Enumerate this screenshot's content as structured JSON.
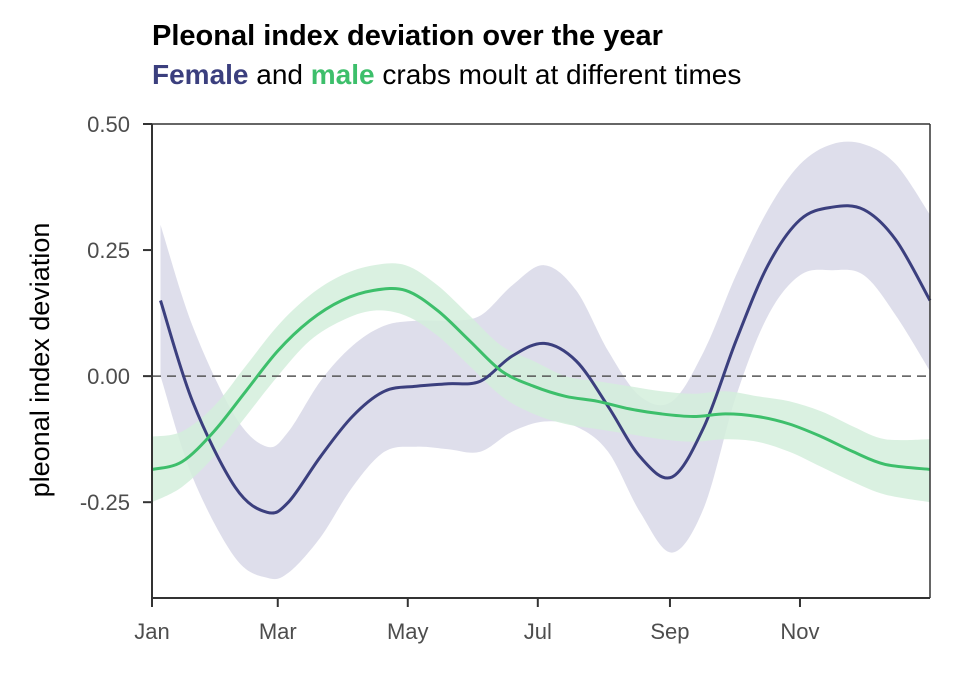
{
  "chart_data": {
    "type": "line",
    "title": "Pleonal index deviation over the year",
    "subtitle": {
      "female_word": "Female",
      "and_word": "and",
      "male_word": "male",
      "rest": "crabs moult at different times"
    },
    "xlabel": "",
    "ylabel": "pleonal index deviation",
    "xlim": [
      1,
      366
    ],
    "ylim": [
      -0.44,
      0.5
    ],
    "x_ticks": [
      {
        "label": "Jan",
        "x": 1
      },
      {
        "label": "Mar",
        "x": 60
      },
      {
        "label": "May",
        "x": 121
      },
      {
        "label": "Jul",
        "x": 182
      },
      {
        "label": "Sep",
        "x": 244
      },
      {
        "label": "Nov",
        "x": 305
      }
    ],
    "y_ticks": [
      {
        "label": "0.50",
        "y": 0.5
      },
      {
        "label": "0.25",
        "y": 0.25
      },
      {
        "label": "0.00",
        "y": 0.0
      },
      {
        "label": "-0.25",
        "y": -0.25
      }
    ],
    "reference_line": {
      "y": 0.0,
      "style": "dashed"
    },
    "grid": false,
    "series": [
      {
        "name": "Female",
        "color": "#3b3f7e",
        "band_color": "#d8d8e8",
        "x": [
          5,
          20,
          40,
          55,
          65,
          80,
          95,
          110,
          125,
          140,
          155,
          170,
          185,
          200,
          215,
          230,
          245,
          260,
          275,
          290,
          305,
          320,
          335,
          350,
          366
        ],
        "y": [
          0.15,
          -0.05,
          -0.22,
          -0.27,
          -0.25,
          -0.16,
          -0.08,
          -0.03,
          -0.02,
          -0.015,
          -0.01,
          0.04,
          0.065,
          0.03,
          -0.06,
          -0.16,
          -0.2,
          -0.1,
          0.07,
          0.22,
          0.31,
          0.335,
          0.33,
          0.27,
          0.15
        ],
        "lower": [
          0.0,
          -0.2,
          -0.36,
          -0.4,
          -0.39,
          -0.32,
          -0.22,
          -0.15,
          -0.14,
          -0.145,
          -0.15,
          -0.11,
          -0.09,
          -0.1,
          -0.15,
          -0.27,
          -0.35,
          -0.26,
          -0.04,
          0.12,
          0.2,
          0.21,
          0.2,
          0.12,
          0.01
        ],
        "upper": [
          0.3,
          0.1,
          -0.08,
          -0.14,
          -0.11,
          -0.01,
          0.06,
          0.1,
          0.11,
          0.11,
          0.12,
          0.18,
          0.22,
          0.17,
          0.05,
          -0.04,
          -0.05,
          0.05,
          0.2,
          0.33,
          0.42,
          0.46,
          0.46,
          0.42,
          0.32
        ]
      },
      {
        "name": "male",
        "color": "#3dbf6b",
        "band_color": "#d3efdc",
        "x": [
          1,
          15,
          30,
          45,
          60,
          75,
          90,
          105,
          120,
          135,
          150,
          165,
          180,
          195,
          210,
          225,
          240,
          255,
          270,
          285,
          300,
          315,
          330,
          345,
          366
        ],
        "y": [
          -0.185,
          -0.17,
          -0.11,
          -0.03,
          0.05,
          0.11,
          0.15,
          0.17,
          0.17,
          0.13,
          0.07,
          0.01,
          -0.02,
          -0.04,
          -0.05,
          -0.065,
          -0.075,
          -0.08,
          -0.075,
          -0.08,
          -0.095,
          -0.12,
          -0.15,
          -0.175,
          -0.185
        ],
        "lower": [
          -0.25,
          -0.22,
          -0.16,
          -0.08,
          0.0,
          0.07,
          0.11,
          0.13,
          0.12,
          0.08,
          0.02,
          -0.04,
          -0.075,
          -0.095,
          -0.105,
          -0.115,
          -0.125,
          -0.13,
          -0.125,
          -0.13,
          -0.15,
          -0.18,
          -0.21,
          -0.235,
          -0.25
        ],
        "upper": [
          -0.12,
          -0.11,
          -0.06,
          0.02,
          0.1,
          0.16,
          0.2,
          0.22,
          0.22,
          0.18,
          0.12,
          0.06,
          0.03,
          0.0,
          -0.01,
          -0.02,
          -0.03,
          -0.035,
          -0.03,
          -0.04,
          -0.05,
          -0.07,
          -0.1,
          -0.125,
          -0.125
        ]
      }
    ]
  }
}
